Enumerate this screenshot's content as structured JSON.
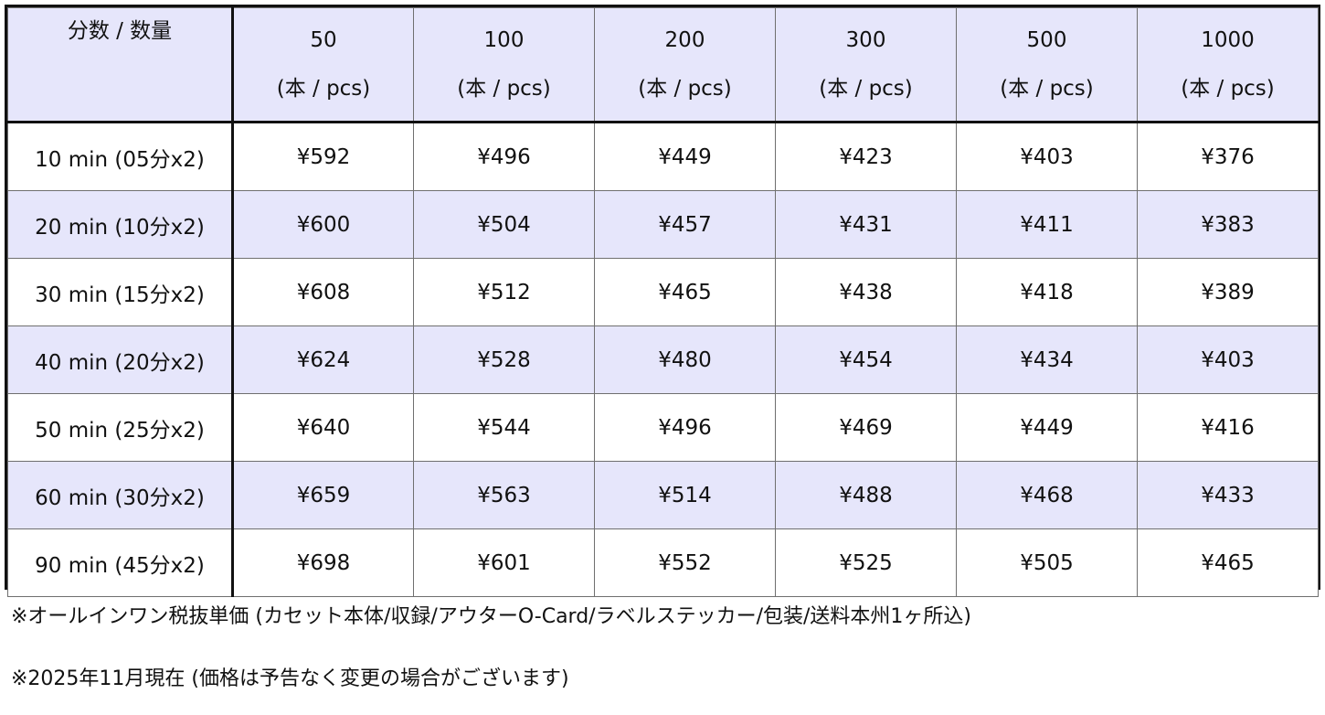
{
  "table": {
    "corner_label": "分数 / 数量",
    "unit_label": "(本 / pcs)",
    "quantities": [
      "50",
      "100",
      "200",
      "300",
      "500",
      "1000"
    ],
    "rows": [
      {
        "label": "10 min (05分x2)",
        "prices": [
          "¥592",
          "¥496",
          "¥449",
          "¥423",
          "¥403",
          "¥376"
        ]
      },
      {
        "label": "20 min (10分x2)",
        "prices": [
          "¥600",
          "¥504",
          "¥457",
          "¥431",
          "¥411",
          "¥383"
        ]
      },
      {
        "label": "30 min  (15分x2)",
        "prices": [
          "¥608",
          "¥512",
          "¥465",
          "¥438",
          "¥418",
          "¥389"
        ]
      },
      {
        "label": "40 min  (20分x2)",
        "prices": [
          "¥624",
          "¥528",
          "¥480",
          "¥454",
          "¥434",
          "¥403"
        ]
      },
      {
        "label": "50 min  (25分x2)",
        "prices": [
          "¥640",
          "¥544",
          "¥496",
          "¥469",
          "¥449",
          "¥416"
        ]
      },
      {
        "label": "60 min  (30分x2)",
        "prices": [
          "¥659",
          "¥563",
          "¥514",
          "¥488",
          "¥468",
          "¥433"
        ]
      },
      {
        "label": "90 min  (45分x2)",
        "prices": [
          "¥698",
          "¥601",
          "¥552",
          "¥525",
          "¥505",
          "¥465"
        ]
      }
    ]
  },
  "notes": [
    "※オールインワン税抜単価 (カセット本体/収録/アウターO-Card/ラベルステッカー/包装/送料本州1ヶ所込)",
    "※2025年11月現在 (価格は予告なく変更の場合がございます)"
  ],
  "colors": {
    "header_bg": "#e6e6fb",
    "shaded_row_bg": "#e6e6fb",
    "border": "#111111"
  }
}
